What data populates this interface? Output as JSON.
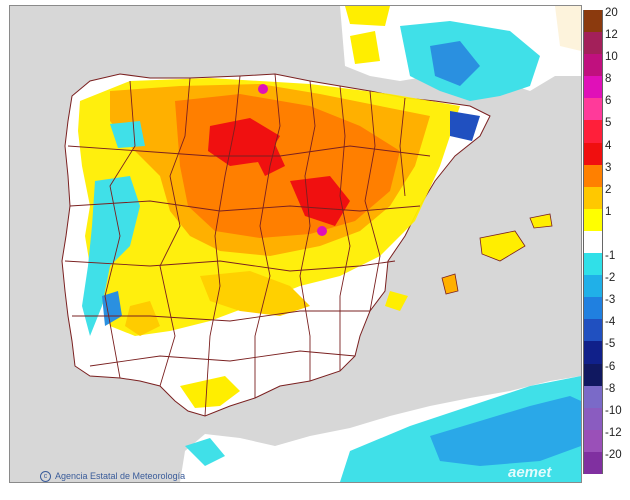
{
  "credit": "Agencia Estatal de Meteorología",
  "brand": "aemet",
  "legend": [
    {
      "label": "20",
      "color": "#8b3a0e"
    },
    {
      "label": "12",
      "color": "#a3205a"
    },
    {
      "label": "10",
      "color": "#c0107e"
    },
    {
      "label": "8",
      "color": "#e010b8"
    },
    {
      "label": "6",
      "color": "#ff3a9a"
    },
    {
      "label": "5",
      "color": "#ff1f3a"
    },
    {
      "label": "4",
      "color": "#f00f0f"
    },
    {
      "label": "3",
      "color": "#ff8000"
    },
    {
      "label": "2",
      "color": "#ffc800"
    },
    {
      "label": "1",
      "color": "#ffff00"
    },
    {
      "label": "",
      "color": "#ffffff"
    },
    {
      "label": "-1",
      "color": "#30e0e8"
    },
    {
      "label": "-2",
      "color": "#20b0e8"
    },
    {
      "label": "-3",
      "color": "#2080e0"
    },
    {
      "label": "-4",
      "color": "#2050c0"
    },
    {
      "label": "-5",
      "color": "#10208a"
    },
    {
      "label": "-6",
      "color": "#101860"
    },
    {
      "label": "-8",
      "color": "#7a6ac8"
    },
    {
      "label": "-10",
      "color": "#8a5cc0"
    },
    {
      "label": "-12",
      "color": "#9a50b8"
    },
    {
      "label": "-20",
      "color": "#8030a0"
    }
  ]
}
